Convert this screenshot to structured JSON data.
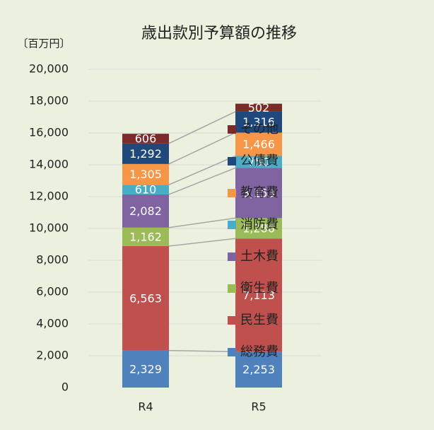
{
  "chart_data": {
    "type": "stacked_bar",
    "title": "歳出款別予算額の推移",
    "y_unit_label": "〔百万円〕",
    "categories": [
      "R4",
      "R5"
    ],
    "series": [
      {
        "name": "総務費",
        "color": "#4f81bd",
        "values": [
          2329,
          2253
        ],
        "value_labels": [
          "2,329",
          "2,253"
        ]
      },
      {
        "name": "民生費",
        "color": "#c0504d",
        "values": [
          6563,
          7113
        ],
        "value_labels": [
          "6,563",
          "7,113"
        ]
      },
      {
        "name": "衛生費",
        "color": "#9bbb59",
        "values": [
          1162,
          1286
        ],
        "value_labels": [
          "1,162",
          "1,286"
        ]
      },
      {
        "name": "土木費",
        "color": "#8064a2",
        "values": [
          2082,
          3153
        ],
        "value_labels": [
          "2,082",
          "3,153"
        ]
      },
      {
        "name": "消防費",
        "color": "#4bacc6",
        "values": [
          610,
          750
        ]
      },
      {
        "name": "教育費",
        "color": "#f79646",
        "values": [
          1305,
          1466
        ],
        "value_labels": [
          "1,305",
          "1,466"
        ]
      },
      {
        "name": "公債費",
        "color": "#1f497d",
        "values": [
          1292,
          1316
        ],
        "value_labels": [
          "1,292",
          "1,316"
        ]
      },
      {
        "name": "その他",
        "color": "#7b2c2a",
        "values": [
          606,
          502
        ]
      }
    ],
    "ylim": [
      0,
      20000
    ],
    "yticks": [
      0,
      {
        "value": 2000,
        "label": "2,000"
      },
      {
        "value": 4000,
        "label": "4,000"
      },
      {
        "value": 6000,
        "label": "6,000"
      },
      {
        "value": 8000,
        "label": "8,000"
      },
      {
        "value": 10000,
        "label": "10,000"
      },
      {
        "value": 12000,
        "label": "12,000"
      },
      {
        "value": 14000,
        "label": "14,000"
      },
      {
        "value": 16000,
        "label": "16,000"
      },
      {
        "value": 18000,
        "label": "18,000"
      },
      {
        "value": 20000,
        "label": "20,000"
      }
    ],
    "grid": true,
    "legend": "right"
  }
}
